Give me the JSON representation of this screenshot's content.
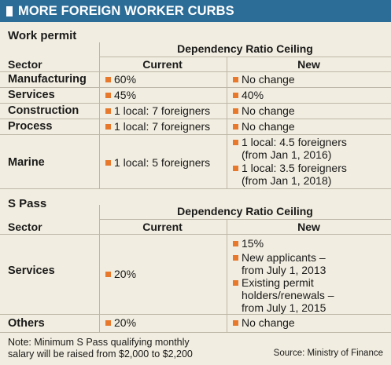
{
  "header": {
    "title": "MORE FOREIGN WORKER CURBS"
  },
  "work_permit": {
    "title": "Work permit",
    "group_header": "Dependency Ratio Ceiling",
    "columns": {
      "sector": "Sector",
      "current": "Current",
      "new": "New"
    },
    "rows": [
      {
        "sector": "Manufacturing",
        "current": "60%",
        "new": [
          "No change"
        ]
      },
      {
        "sector": "Services",
        "current": "45%",
        "new": [
          "40%"
        ]
      },
      {
        "sector": "Construction",
        "current": "1 local: 7 foreigners",
        "new": [
          "No change"
        ]
      },
      {
        "sector": "Process",
        "current": "1 local: 7 foreigners",
        "new": [
          "No change"
        ]
      },
      {
        "sector": "Marine",
        "current": "1 local: 5 foreigners",
        "new": [
          [
            "1 local: 4.5 foreigners",
            "(from Jan 1, 2016)"
          ],
          [
            "1 local: 3.5 foreigners",
            "(from Jan 1, 2018)"
          ]
        ]
      }
    ]
  },
  "s_pass": {
    "title": "S Pass",
    "group_header": "Dependency Ratio Ceiling",
    "columns": {
      "sector": "Sector",
      "current": "Current",
      "new": "New"
    },
    "rows": [
      {
        "sector": "Services",
        "current": "20%",
        "new": [
          [
            "15%"
          ],
          [
            "New applicants –",
            "from July 1, 2013"
          ],
          [
            "Existing permit",
            "holders/renewals –",
            "from July 1, 2015"
          ]
        ]
      },
      {
        "sector": "Others",
        "current": "20%",
        "new": [
          "No change"
        ]
      }
    ]
  },
  "footer": {
    "note_line1": "Note: Minimum S Pass qualifying monthly",
    "note_line2": "salary will be raised from $2,000 to $2,200",
    "source": "Source: Ministry of Finance"
  },
  "colors": {
    "banner": "#2c6d98",
    "background": "#f1ede0",
    "bullet": "#e8792c"
  }
}
